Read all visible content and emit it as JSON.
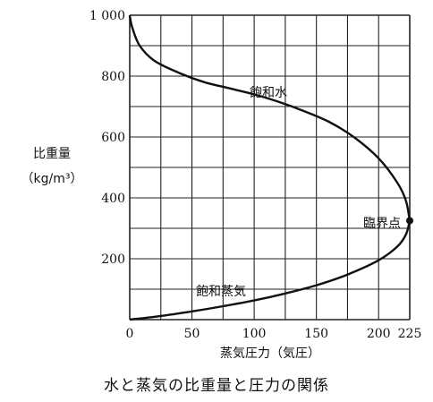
{
  "chart_data": {
    "type": "line",
    "xlabel": "蒸気圧力（気圧）",
    "ylabel": "比重量",
    "yunit": "（kg/m³）",
    "caption": "水と蒸気の比重量と圧力の関係",
    "xlim": [
      0,
      225
    ],
    "ylim": [
      0,
      1000
    ],
    "x_ticks": [
      0,
      50,
      100,
      150,
      200,
      225
    ],
    "x_tick_labels": [
      "0",
      "50",
      "100",
      "150",
      "200",
      "225"
    ],
    "y_ticks": [
      200,
      400,
      600,
      800,
      1000
    ],
    "y_tick_labels": [
      "200",
      "400",
      "600",
      "800",
      "1 000"
    ],
    "grid": true,
    "series": [
      {
        "name": "飽和水",
        "x": [
          0,
          2,
          8,
          20,
          40,
          60,
          80,
          100,
          120,
          140,
          160,
          180,
          200,
          215,
          222,
          225
        ],
        "y": [
          1000,
          960,
          900,
          850,
          810,
          780,
          760,
          740,
          715,
          685,
          650,
          600,
          530,
          450,
          390,
          325
        ]
      },
      {
        "name": "飽和蒸気",
        "x": [
          0,
          25,
          50,
          75,
          100,
          125,
          150,
          175,
          200,
          215,
          222,
          225
        ],
        "y": [
          0,
          12,
          27,
          44,
          63,
          86,
          113,
          148,
          195,
          240,
          280,
          325
        ]
      }
    ],
    "annotations": [
      {
        "text": "臨界点",
        "x": 225,
        "y": 325
      }
    ]
  }
}
